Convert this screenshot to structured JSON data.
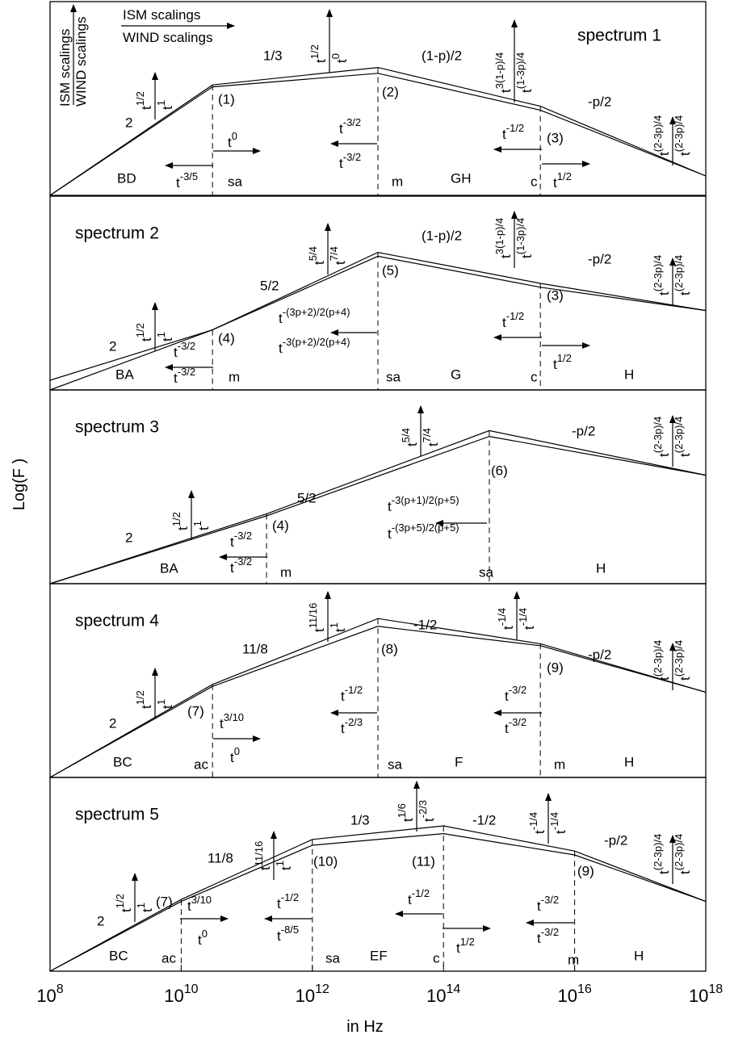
{
  "scaling_base": "t",
  "legend": {
    "ism": "ISM scalings",
    "wind": "WIND scalings"
  },
  "y_label": "Log(F )",
  "x_label": "in  Hz",
  "chart_data": [
    {
      "type": "line",
      "log_x": true,
      "xlim": [
        100000000,
        1000000000000000000
      ],
      "ylim": [
        0,
        100
      ],
      "x": [
        100000000,
        30000000000,
        10000000000000,
        3000000000000000,
        1000000000000000000
      ],
      "series": [
        {
          "color": "#000000",
          "values": [
            0,
            57,
            66,
            46,
            10
          ]
        },
        {
          "color": "#000000",
          "values": [
            0,
            56,
            63,
            44,
            10
          ]
        }
      ],
      "annotations": [
        "2",
        "1/3",
        "(1-p)/2",
        "-p/2",
        "(1)",
        "(2)",
        "(3)",
        "BD",
        "sa",
        "m",
        "GH",
        "c",
        "spectrum 1"
      ],
      "scalings": [
        "1/2",
        "1",
        "1/2",
        "0",
        "3(1-p)/4",
        "(1-3p)/4",
        "(2-3p)/4",
        "(2-3p)/4",
        "0",
        "-3/5",
        "-3/2",
        "-3/2",
        "-1/2",
        "1/2"
      ]
    },
    {
      "type": "line",
      "log_x": true,
      "xlim": [
        100000000,
        1000000000000000000
      ],
      "ylim": [
        0,
        100
      ],
      "x": [
        100000000,
        30000000000,
        10000000000000,
        3000000000000000,
        1000000000000000000
      ],
      "series": [
        {
          "color": "#000000",
          "values": [
            0,
            31,
            71,
            55,
            41
          ]
        },
        {
          "color": "#000000",
          "values": [
            5,
            31,
            69,
            53,
            41
          ]
        }
      ],
      "annotations": [
        "spectrum 2",
        "(1-p)/2",
        "-p/2",
        "5/2",
        "2",
        "(4)",
        "(5)",
        "(3)",
        "BA",
        "m",
        "sa",
        "G",
        "c",
        "H"
      ],
      "scalings": [
        "1/2",
        "1",
        "5/4",
        "7/4",
        "3(1-p)/4",
        "(1-3p)/4",
        "(2-3p)/4",
        "(2-3p)/4",
        "-3/2",
        "-3/2",
        "-(3p+2)/2(p+4)",
        "-3(p+2)/2(p+4)",
        "-1/2",
        "1/2"
      ]
    },
    {
      "type": "line",
      "log_x": true,
      "xlim": [
        100000000,
        1000000000000000000
      ],
      "ylim": [
        0,
        100
      ],
      "x": [
        100000000,
        200000000000,
        500000000000000,
        1000000000000000000
      ],
      "series": [
        {
          "color": "#000000",
          "values": [
            0,
            36,
            79,
            56
          ]
        },
        {
          "color": "#000000",
          "values": [
            0,
            35,
            76,
            56
          ]
        }
      ],
      "annotations": [
        "spectrum 3",
        "-p/2",
        "5/2",
        "2",
        "(4)",
        "(6)",
        "BA",
        "m",
        "sa",
        "H"
      ],
      "scalings": [
        "1/2",
        "1",
        "5/4",
        "7/4",
        "(2-3p)/4",
        "(2-3p)/4",
        "-3/2",
        "-3/2",
        "-3(p+1)/2(p+5)",
        "-(3p+5)/2(p+5)"
      ]
    },
    {
      "type": "line",
      "log_x": true,
      "xlim": [
        100000000,
        1000000000000000000
      ],
      "ylim": [
        0,
        100
      ],
      "x": [
        100000000,
        30000000000,
        10000000000000,
        3000000000000000,
        1000000000000000000
      ],
      "series": [
        {
          "color": "#000000",
          "values": [
            0,
            48,
            82,
            69,
            44
          ]
        },
        {
          "color": "#000000",
          "values": [
            0,
            47,
            78,
            68,
            44
          ]
        }
      ],
      "annotations": [
        "spectrum 4",
        "-1/2",
        "-p/2",
        "11/8",
        "2",
        "(7)",
        "(8)",
        "(9)",
        "BC",
        "ac",
        "sa",
        "F",
        "m",
        "H"
      ],
      "scalings": [
        "1/2",
        "1",
        "11/16",
        "1",
        "-1/4",
        "-1/4",
        "(2-3p)/4",
        "(2-3p)/4",
        "3/10",
        "0",
        "-1/2",
        "-2/3",
        "-3/2",
        "-3/2"
      ]
    },
    {
      "type": "line",
      "log_x": true,
      "xlim": [
        100000000,
        1000000000000000000
      ],
      "ylim": [
        0,
        100
      ],
      "x": [
        100000000,
        10000000000,
        1000000000000,
        100000000000000,
        10000000000000000,
        1000000000000000000
      ],
      "series": [
        {
          "color": "#000000",
          "values": [
            0,
            37,
            68,
            75,
            62,
            36
          ]
        },
        {
          "color": "#000000",
          "values": [
            0,
            36,
            65,
            71,
            60,
            36
          ]
        }
      ],
      "annotations": [
        "spectrum 5",
        "1/3",
        "-1/2",
        "-p/2",
        "11/8",
        "2",
        "(7)",
        "(10)",
        "(11)",
        "(9)",
        "BC",
        "ac",
        "sa",
        "EF",
        "c",
        "m",
        "H"
      ],
      "scalings": [
        "1/2",
        "1",
        "11/16",
        "1",
        "1/6",
        "-2/3",
        "-1/4",
        "-1/4",
        "(2-3p)/4",
        "(2-3p)/4",
        "3/10",
        "0",
        "-1/2",
        "-8/5",
        "-1/2",
        "1/2",
        "-3/2",
        "-3/2"
      ],
      "xticks": [
        {
          "value": 100000000,
          "label": "10",
          "sup": "8"
        },
        {
          "value": 10000000000,
          "label": "10",
          "sup": "10"
        },
        {
          "value": 1000000000000,
          "label": "10",
          "sup": "12"
        },
        {
          "value": 100000000000000,
          "label": "10",
          "sup": "14"
        },
        {
          "value": 10000000000000000,
          "label": "10",
          "sup": "16"
        },
        {
          "value": 1000000000000000000,
          "label": "10",
          "sup": "18"
        }
      ]
    }
  ]
}
